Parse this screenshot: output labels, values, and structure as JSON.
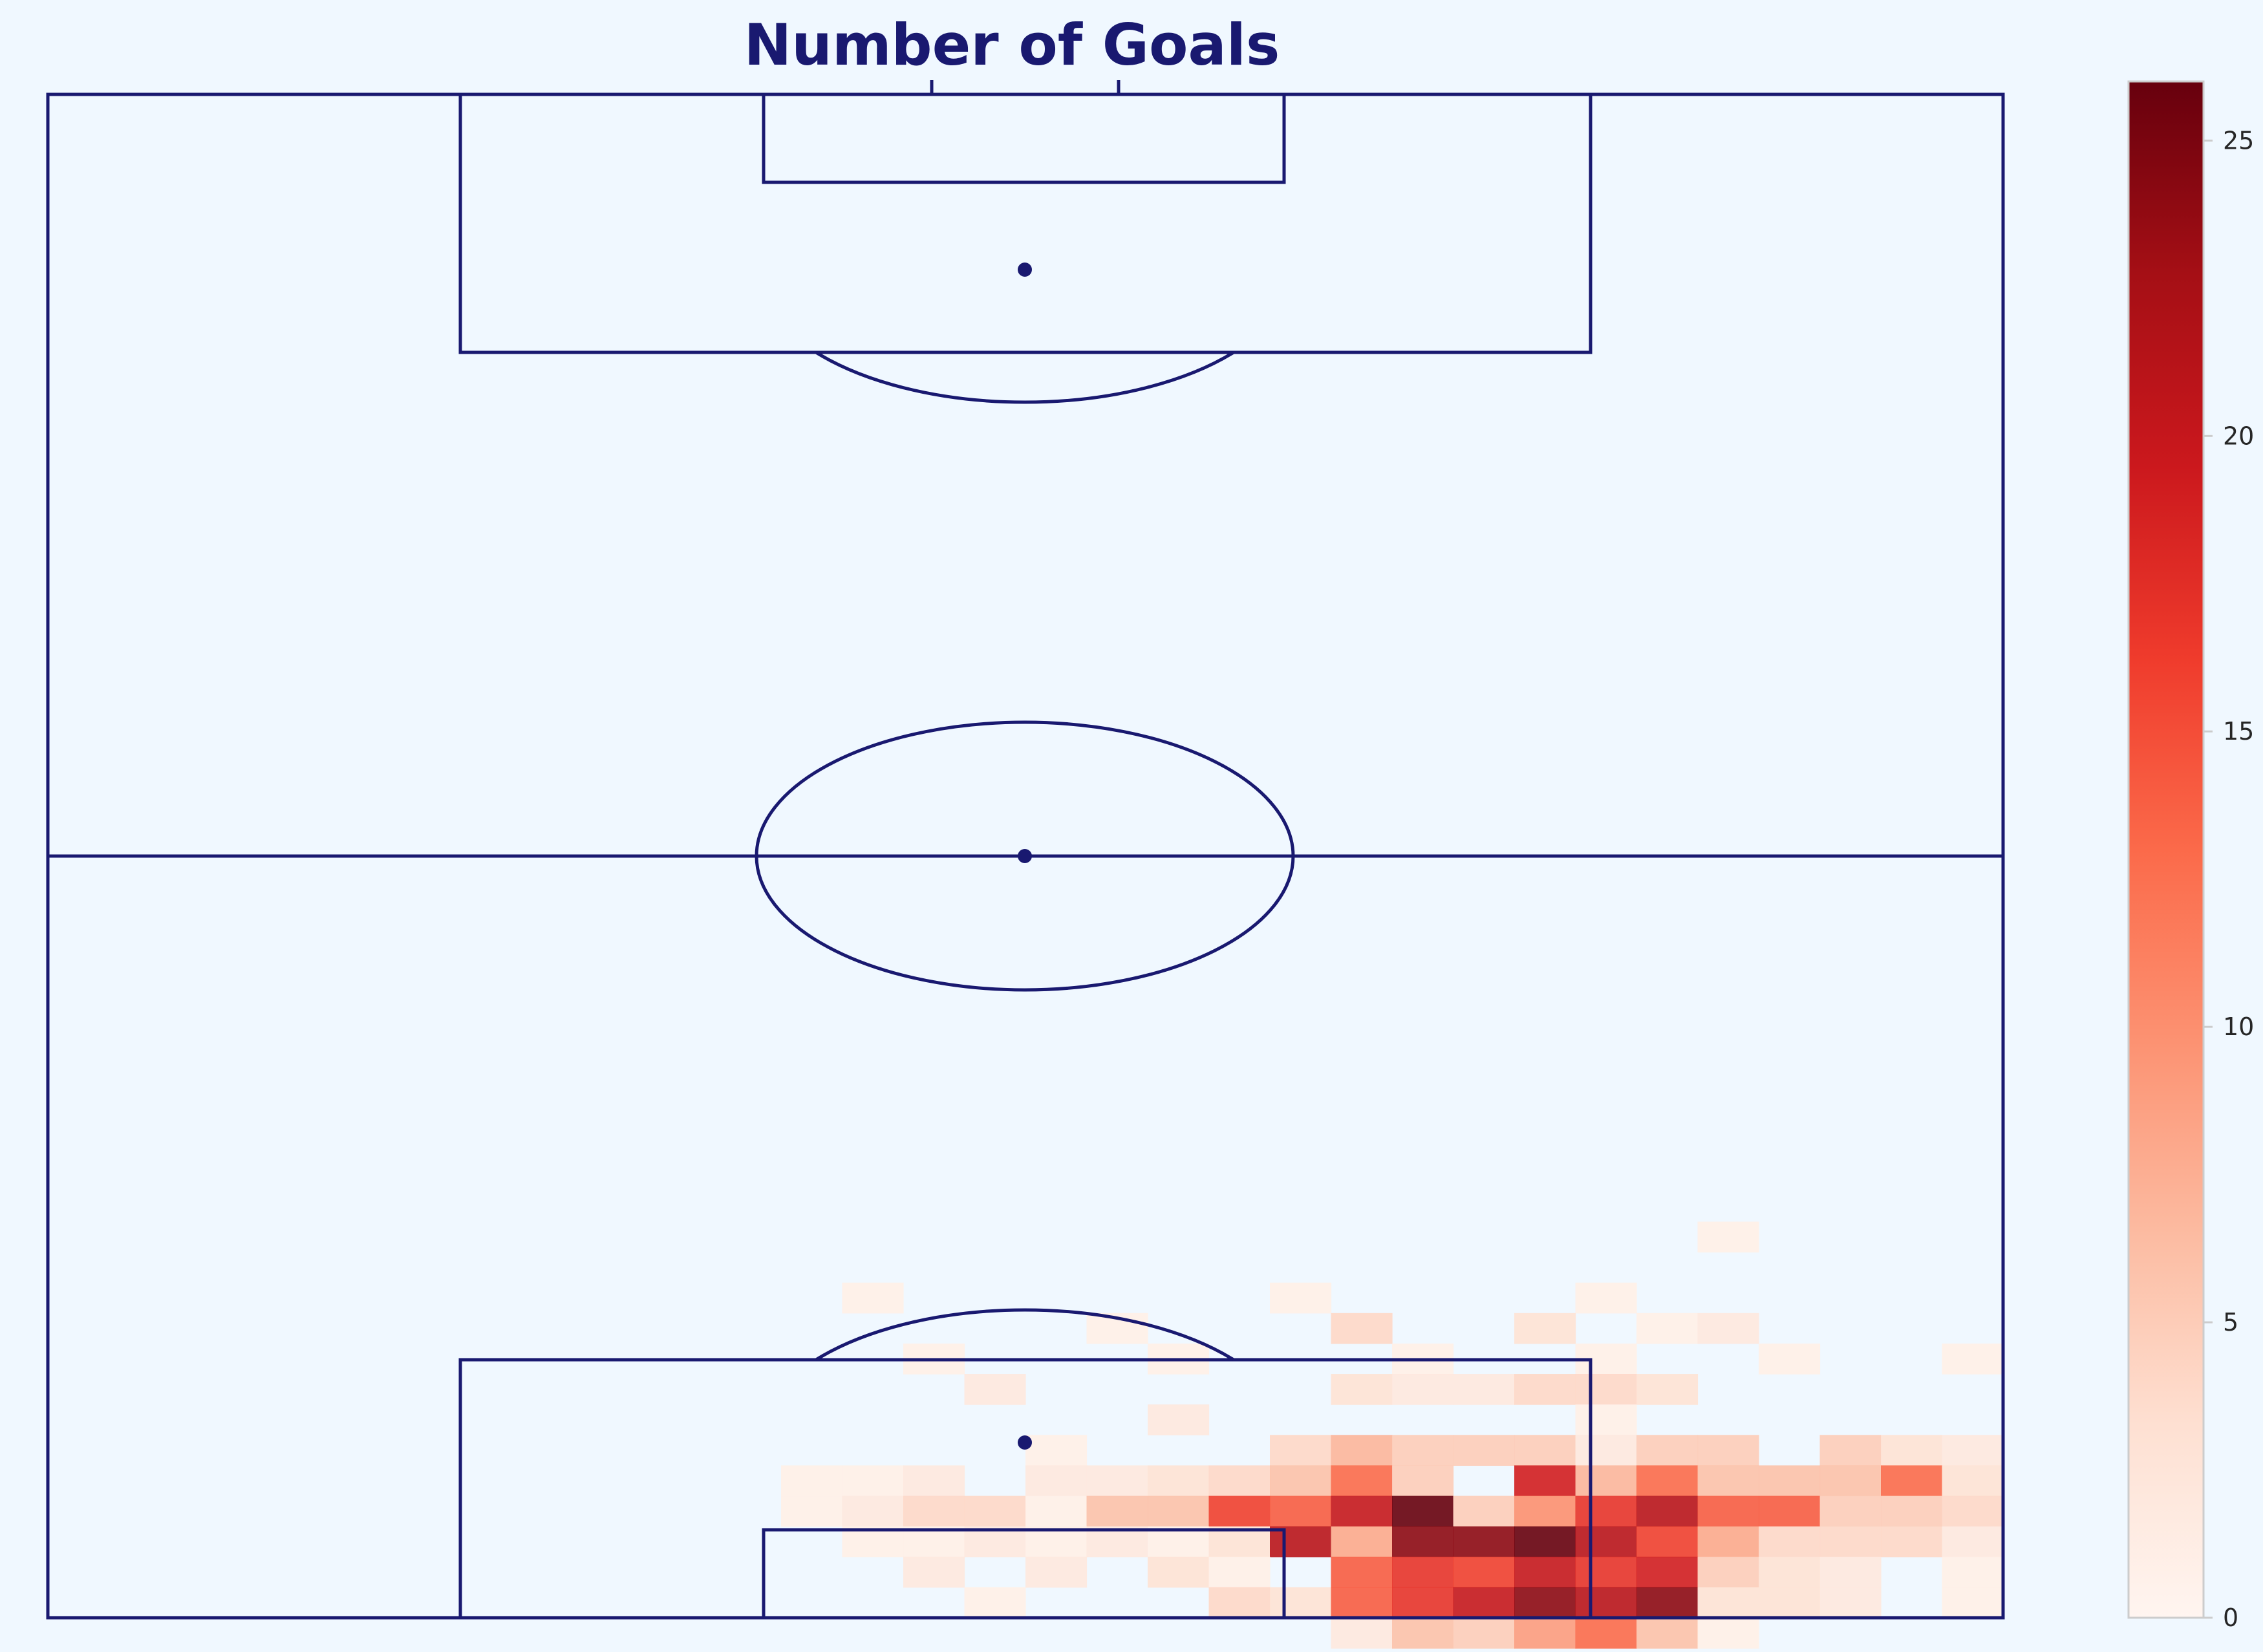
{
  "chart_data": {
    "type": "heatmap",
    "title": "Number of Goals",
    "xlabel": "",
    "ylabel": "",
    "colormap": "Reds",
    "pitch": {
      "line_color": "#191970",
      "background": "#f0f8ff",
      "orientation": "vertical",
      "attacking_end": "bottom"
    },
    "colorbar": {
      "min": 0,
      "max": 26,
      "ticks": [
        "0",
        "5",
        "10",
        "15",
        "20",
        "25"
      ]
    },
    "grid": {
      "columns": 32,
      "rows": 50,
      "x_range": [
        0,
        68
      ],
      "y_range": [
        105,
        0
      ],
      "visible_window": {
        "first_row": 36,
        "first_col": 12
      }
    },
    "cells": [
      [
        0,
        0,
        0,
        0,
        0,
        0,
        0,
        0,
        0,
        0,
        0,
        0,
        0,
        0,
        0,
        0,
        0,
        0,
        0,
        0
      ],
      [
        0,
        0,
        0,
        0,
        0,
        0,
        0,
        0,
        0,
        0,
        0,
        0,
        0,
        0,
        0,
        1,
        0,
        0,
        0,
        0
      ],
      [
        0,
        0,
        0,
        0,
        0,
        0,
        0,
        0,
        0,
        0,
        0,
        0,
        0,
        0,
        0,
        0,
        0,
        0,
        0,
        0
      ],
      [
        0,
        1,
        0,
        0,
        0,
        0,
        0,
        0,
        1,
        0,
        0,
        0,
        0,
        1,
        0,
        0,
        0,
        0,
        0,
        0
      ],
      [
        0,
        0,
        0,
        0,
        0,
        1,
        0,
        0,
        0,
        4,
        0,
        0,
        3,
        0,
        1,
        2,
        0,
        0,
        0,
        0
      ],
      [
        0,
        0,
        1,
        0,
        0,
        0,
        1,
        0,
        0,
        0,
        1,
        0,
        0,
        1,
        0,
        0,
        1,
        0,
        0,
        1
      ],
      [
        0,
        0,
        0,
        2,
        0,
        0,
        0,
        0,
        0,
        3,
        2,
        2,
        4,
        4,
        3,
        0,
        0,
        0,
        0,
        0
      ],
      [
        0,
        0,
        0,
        0,
        0,
        0,
        2,
        0,
        0,
        0,
        0,
        0,
        0,
        1,
        0,
        0,
        0,
        0,
        0,
        0
      ],
      [
        0,
        0,
        0,
        0,
        1,
        0,
        0,
        0,
        4,
        7,
        5,
        5,
        5,
        2,
        5,
        5,
        0,
        5,
        3,
        2
      ],
      [
        1,
        1,
        2,
        0,
        2,
        2,
        3,
        4,
        6,
        13,
        5,
        0,
        19,
        7,
        13,
        6,
        6,
        6,
        13,
        3
      ],
      [
        1,
        2,
        4,
        4,
        1,
        6,
        6,
        16,
        14,
        20,
        26,
        5,
        10,
        17,
        21,
        14,
        14,
        5,
        5,
        4
      ],
      [
        0,
        1,
        1,
        2,
        1,
        2,
        1,
        3,
        21,
        8,
        24,
        24,
        26,
        21,
        16,
        8,
        4,
        4,
        4,
        2
      ],
      [
        0,
        0,
        2,
        0,
        2,
        0,
        3,
        1,
        0,
        14,
        17,
        16,
        20,
        17,
        19,
        5,
        3,
        2,
        0,
        1
      ],
      [
        0,
        0,
        0,
        1,
        0,
        0,
        0,
        4,
        3,
        14,
        17,
        20,
        24,
        21,
        24,
        3,
        3,
        2,
        0,
        1
      ],
      [
        0,
        0,
        0,
        0,
        0,
        0,
        0,
        0,
        0,
        2,
        6,
        5,
        9,
        13,
        6,
        1,
        0,
        0,
        0,
        0
      ]
    ]
  }
}
